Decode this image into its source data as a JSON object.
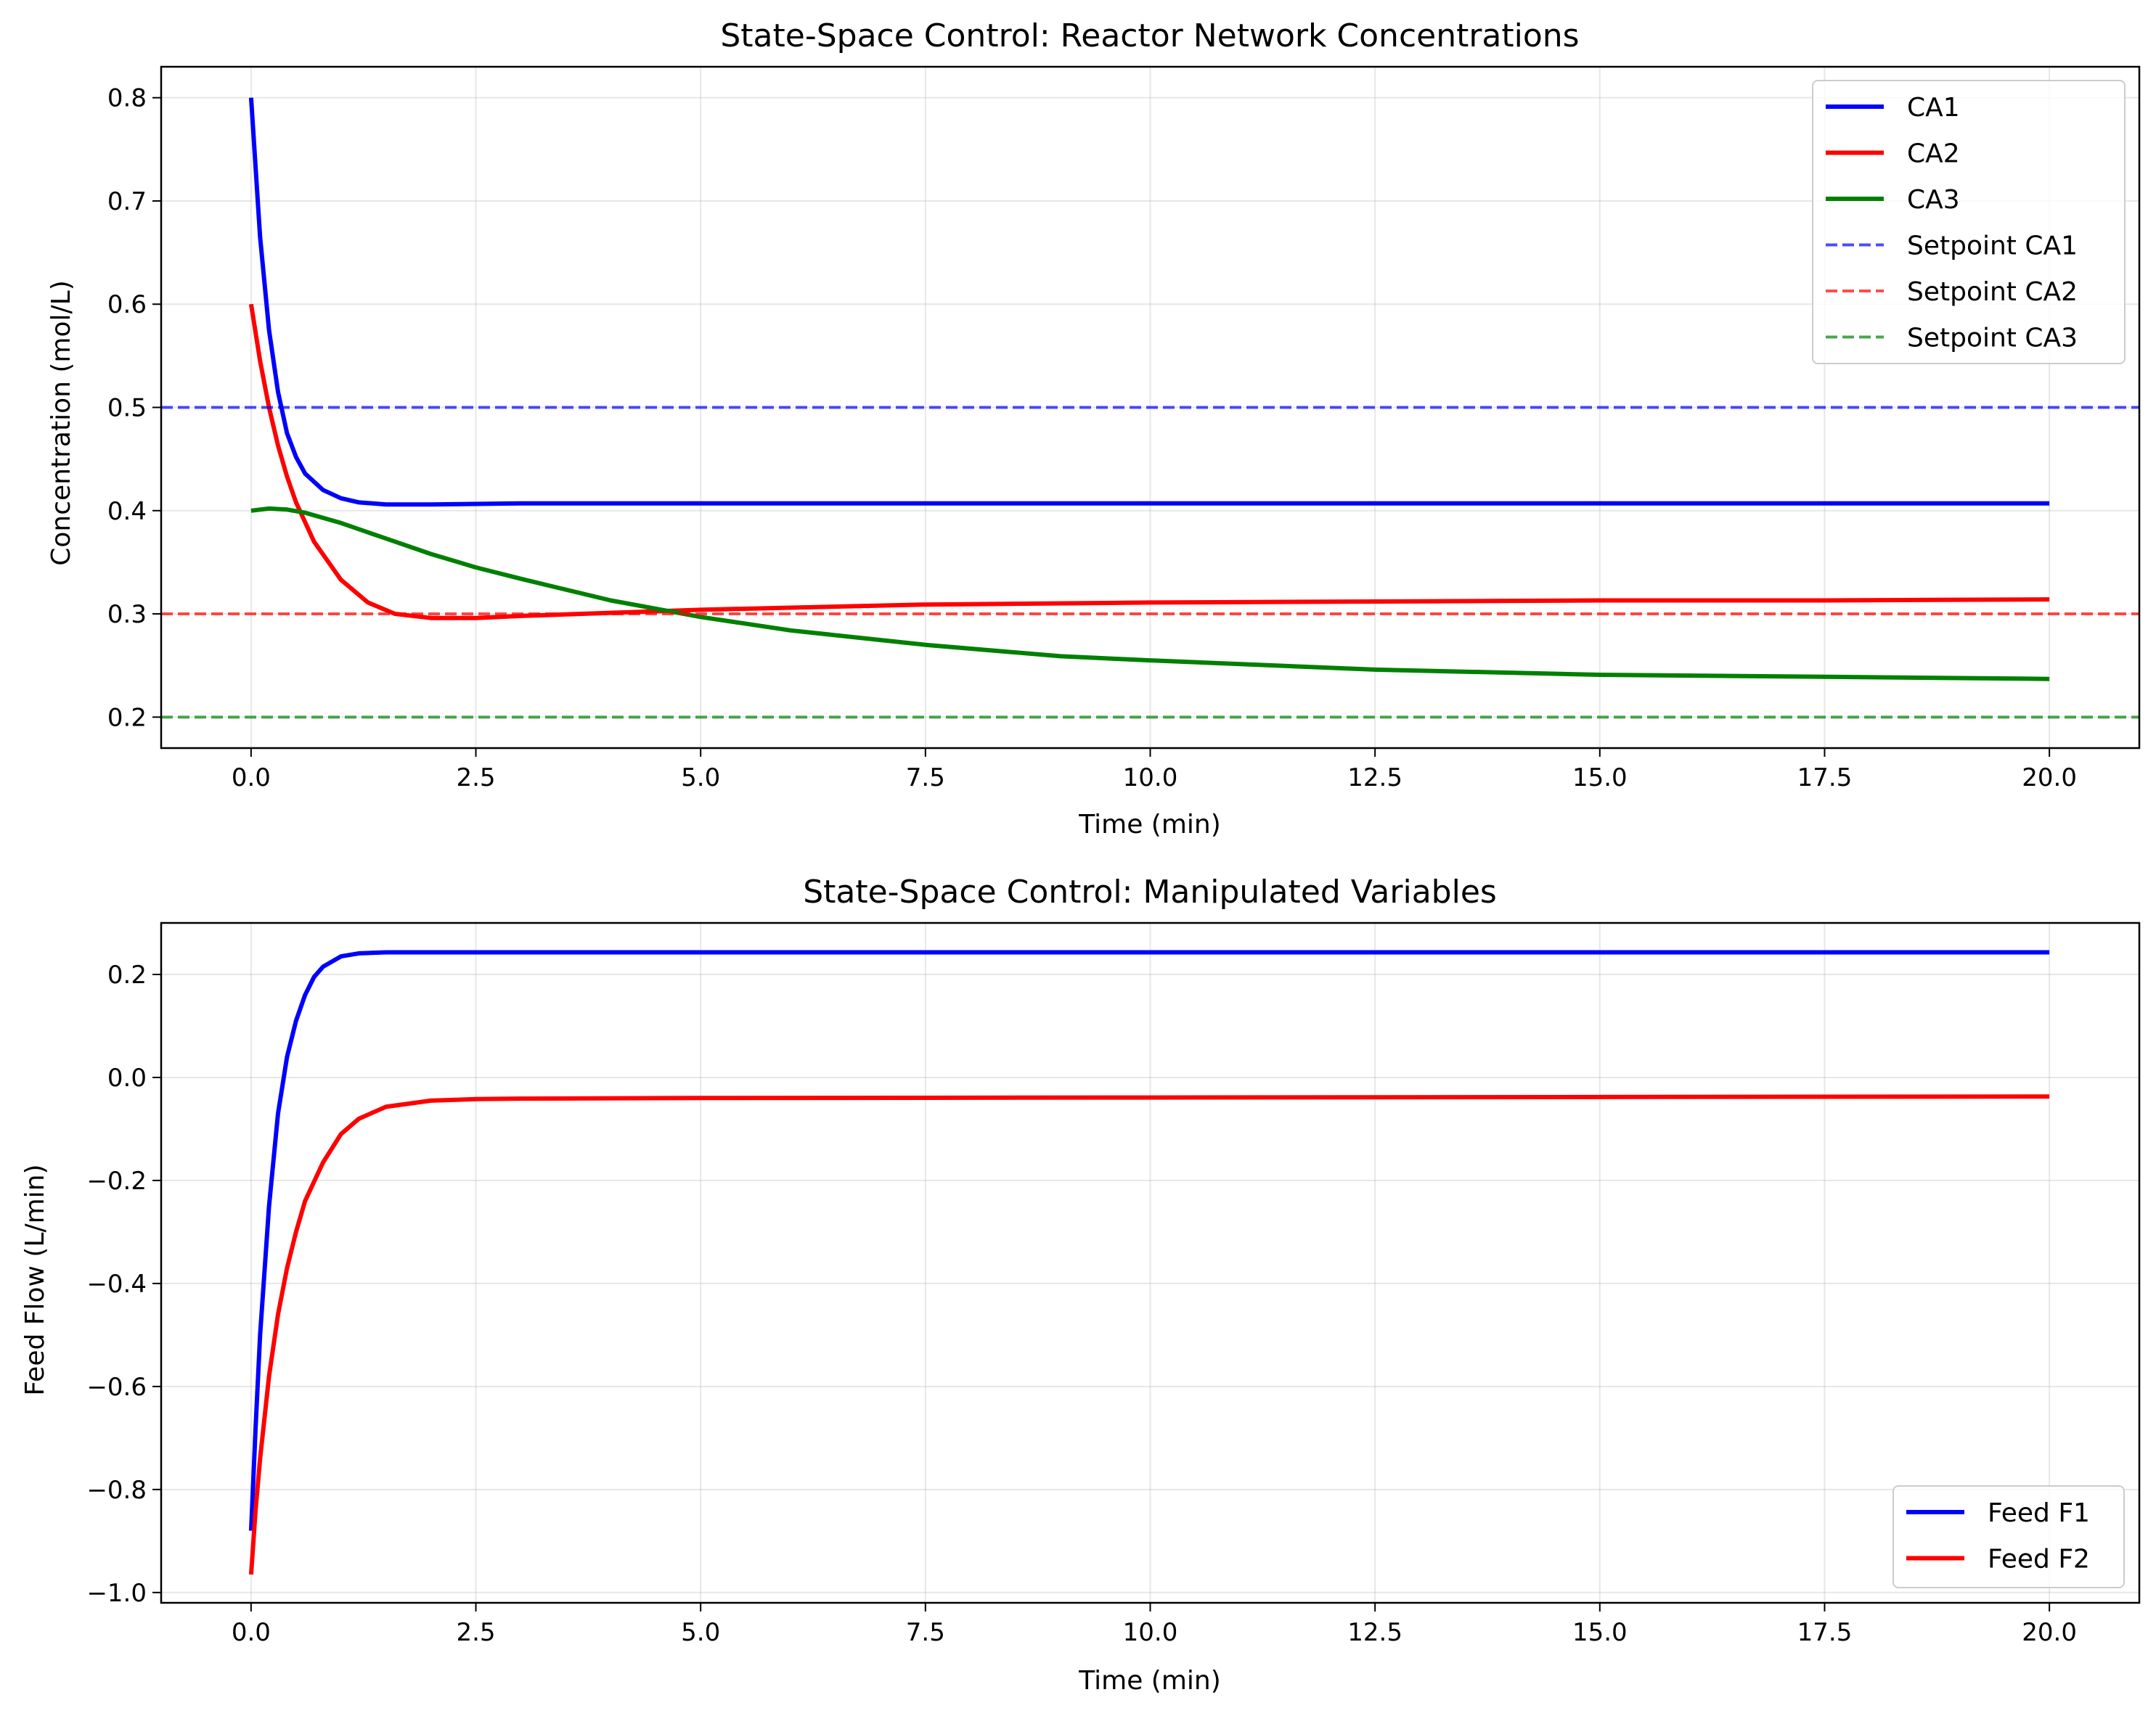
{
  "chart_data": [
    {
      "type": "line",
      "title": "State-Space Control: Reactor Network Concentrations",
      "xlabel": "Time (min)",
      "ylabel": "Concentration (mol/L)",
      "xlim": [
        -1.0,
        21.0
      ],
      "ylim": [
        0.17,
        0.83
      ],
      "xticks": [
        0.0,
        2.5,
        5.0,
        7.5,
        10.0,
        12.5,
        15.0,
        17.5,
        20.0
      ],
      "xtick_labels": [
        "0.0",
        "2.5",
        "5.0",
        "7.5",
        "10.0",
        "12.5",
        "15.0",
        "17.5",
        "20.0"
      ],
      "yticks": [
        0.2,
        0.3,
        0.4,
        0.5,
        0.6,
        0.7,
        0.8
      ],
      "ytick_labels": [
        "0.2",
        "0.3",
        "0.4",
        "0.5",
        "0.6",
        "0.7",
        "0.8"
      ],
      "grid": true,
      "legend_position": "top-right",
      "series": [
        {
          "name": "CA1",
          "color": "#0000ff",
          "style": "solid",
          "x": [
            0,
            0.1,
            0.2,
            0.3,
            0.4,
            0.5,
            0.6,
            0.8,
            1.0,
            1.2,
            1.5,
            2.0,
            3.0,
            5.0,
            10.0,
            15.0,
            20.0
          ],
          "y": [
            0.8,
            0.665,
            0.575,
            0.515,
            0.475,
            0.452,
            0.436,
            0.42,
            0.412,
            0.408,
            0.406,
            0.406,
            0.407,
            0.407,
            0.407,
            0.407,
            0.407
          ]
        },
        {
          "name": "CA2",
          "color": "#ff0000",
          "style": "solid",
          "x": [
            0,
            0.1,
            0.2,
            0.3,
            0.4,
            0.5,
            0.7,
            1.0,
            1.3,
            1.6,
            2.0,
            2.5,
            3.0,
            4.0,
            5.0,
            6.0,
            7.5,
            10.0,
            12.5,
            15.0,
            17.5,
            20.0
          ],
          "y": [
            0.6,
            0.545,
            0.5,
            0.463,
            0.433,
            0.408,
            0.37,
            0.333,
            0.311,
            0.3,
            0.296,
            0.296,
            0.298,
            0.301,
            0.304,
            0.306,
            0.309,
            0.311,
            0.312,
            0.313,
            0.313,
            0.314
          ]
        },
        {
          "name": "CA3",
          "color": "#008000",
          "style": "solid",
          "x": [
            0,
            0.2,
            0.4,
            0.6,
            1.0,
            1.5,
            2.0,
            2.5,
            3.0,
            4.0,
            5.0,
            6.0,
            7.5,
            9.0,
            10.0,
            12.5,
            15.0,
            17.5,
            20.0
          ],
          "y": [
            0.4,
            0.402,
            0.401,
            0.398,
            0.388,
            0.373,
            0.358,
            0.345,
            0.334,
            0.313,
            0.297,
            0.284,
            0.27,
            0.259,
            0.255,
            0.246,
            0.241,
            0.239,
            0.237
          ]
        },
        {
          "name": "Setpoint CA1",
          "color": "#0000ff",
          "style": "dashed",
          "constant": 0.5
        },
        {
          "name": "Setpoint CA2",
          "color": "#ff0000",
          "style": "dashed",
          "constant": 0.3
        },
        {
          "name": "Setpoint CA3",
          "color": "#008000",
          "style": "dashed",
          "constant": 0.2
        }
      ]
    },
    {
      "type": "line",
      "title": "State-Space Control: Manipulated Variables",
      "xlabel": "Time (min)",
      "ylabel": "Feed Flow (L/min)",
      "xlim": [
        -1.0,
        21.0
      ],
      "ylim": [
        -1.02,
        0.3
      ],
      "xticks": [
        0.0,
        2.5,
        5.0,
        7.5,
        10.0,
        12.5,
        15.0,
        17.5,
        20.0
      ],
      "xtick_labels": [
        "0.0",
        "2.5",
        "5.0",
        "7.5",
        "10.0",
        "12.5",
        "15.0",
        "17.5",
        "20.0"
      ],
      "yticks": [
        -1.0,
        -0.8,
        -0.6,
        -0.4,
        -0.2,
        0.0,
        0.2
      ],
      "ytick_labels": [
        "−1.0",
        "−0.8",
        "−0.6",
        "−0.4",
        "−0.2",
        "0.0",
        "0.2"
      ],
      "grid": true,
      "legend_position": "bottom-right",
      "series": [
        {
          "name": "Feed F1",
          "color": "#0000ff",
          "style": "solid",
          "x": [
            0,
            0.05,
            0.1,
            0.2,
            0.3,
            0.4,
            0.5,
            0.6,
            0.7,
            0.8,
            1.0,
            1.2,
            1.5,
            2.0,
            5.0,
            10.0,
            15.0,
            20.0
          ],
          "y": [
            -0.88,
            -0.68,
            -0.5,
            -0.25,
            -0.07,
            0.04,
            0.11,
            0.16,
            0.195,
            0.215,
            0.235,
            0.241,
            0.243,
            0.243,
            0.243,
            0.243,
            0.243,
            0.243
          ]
        },
        {
          "name": "Feed F2",
          "color": "#ff0000",
          "style": "solid",
          "x": [
            0,
            0.05,
            0.1,
            0.2,
            0.3,
            0.4,
            0.5,
            0.6,
            0.8,
            1.0,
            1.2,
            1.5,
            2.0,
            2.5,
            3.0,
            5.0,
            10.0,
            15.0,
            20.0
          ],
          "y": [
            -0.965,
            -0.84,
            -0.74,
            -0.58,
            -0.46,
            -0.37,
            -0.3,
            -0.24,
            -0.165,
            -0.11,
            -0.08,
            -0.057,
            -0.045,
            -0.042,
            -0.041,
            -0.04,
            -0.039,
            -0.038,
            -0.037
          ]
        }
      ]
    }
  ]
}
